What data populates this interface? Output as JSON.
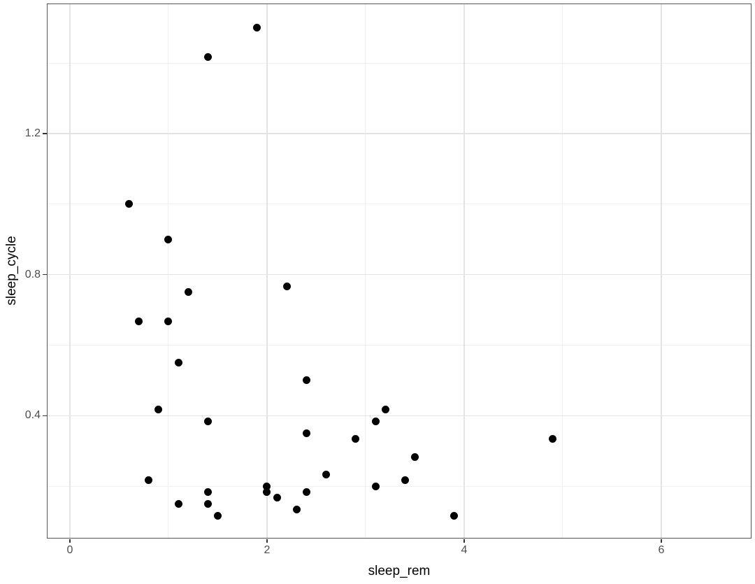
{
  "chart_data": {
    "type": "scatter",
    "title": "",
    "xlabel": "sleep_rem",
    "ylabel": "sleep_cycle",
    "xlim": [
      -0.234,
      6.915
    ],
    "ylim": [
      0.0504,
      1.5692
    ],
    "x_major_ticks": [
      0,
      2,
      4,
      6
    ],
    "x_tick_labels": [
      "0",
      "2",
      "4",
      "6"
    ],
    "x_minor_ticks": [
      1,
      3,
      5
    ],
    "y_major_ticks": [
      0.4,
      0.8,
      1.2
    ],
    "y_tick_labels": [
      "0.4",
      "0.8",
      "1.2"
    ],
    "y_minor_ticks": [
      0.2,
      0.6,
      1.0,
      1.4
    ],
    "grid": true,
    "legend_position": "none",
    "point_color": "#000000",
    "points": [
      {
        "x": 1.9,
        "y": 1.5
      },
      {
        "x": 1.4,
        "y": 1.4167
      },
      {
        "x": 0.6,
        "y": 1.0
      },
      {
        "x": 1.0,
        "y": 0.9
      },
      {
        "x": 1.2,
        "y": 0.75
      },
      {
        "x": 2.2,
        "y": 0.7667
      },
      {
        "x": 0.7,
        "y": 0.6667
      },
      {
        "x": 1.0,
        "y": 0.6667
      },
      {
        "x": 1.1,
        "y": 0.55
      },
      {
        "x": 2.4,
        "y": 0.5
      },
      {
        "x": 0.9,
        "y": 0.4167
      },
      {
        "x": 3.2,
        "y": 0.4167
      },
      {
        "x": 1.4,
        "y": 0.3833
      },
      {
        "x": 3.1,
        "y": 0.3833
      },
      {
        "x": 2.4,
        "y": 0.35
      },
      {
        "x": 2.9,
        "y": 0.3333
      },
      {
        "x": 4.9,
        "y": 0.3333
      },
      {
        "x": 3.5,
        "y": 0.2833
      },
      {
        "x": 2.6,
        "y": 0.2333
      },
      {
        "x": 0.8,
        "y": 0.2167
      },
      {
        "x": 3.4,
        "y": 0.2167
      },
      {
        "x": 2.0,
        "y": 0.2
      },
      {
        "x": 3.1,
        "y": 0.2
      },
      {
        "x": 1.4,
        "y": 0.1833
      },
      {
        "x": 2.0,
        "y": 0.1833
      },
      {
        "x": 2.4,
        "y": 0.1833
      },
      {
        "x": 2.1,
        "y": 0.1667
      },
      {
        "x": 1.1,
        "y": 0.15
      },
      {
        "x": 1.4,
        "y": 0.15
      },
      {
        "x": 2.3,
        "y": 0.1333
      },
      {
        "x": 1.5,
        "y": 0.1167
      },
      {
        "x": 3.9,
        "y": 0.1167
      }
    ],
    "style": {
      "panel_background": "#ffffff",
      "panel_border_color": "#555555",
      "grid_major_color": "#e3e3e3",
      "grid_minor_color": "#f0f0f0",
      "tick_color": "#333333",
      "tick_label_color": "#4d4d4d",
      "axis_title_color": "#000000"
    }
  }
}
